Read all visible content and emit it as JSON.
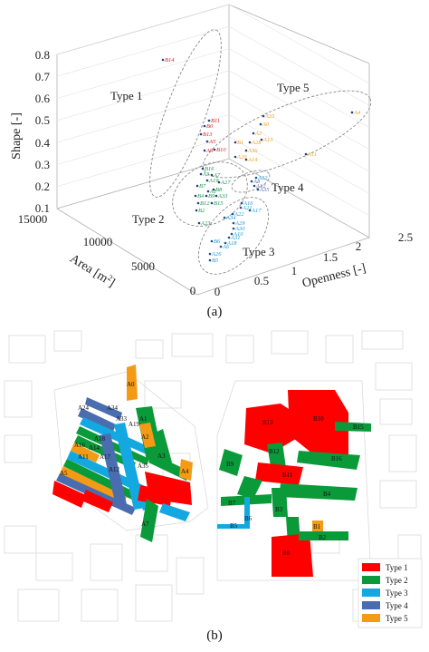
{
  "figure": {
    "caption_a": "(a)",
    "caption_b": "(b)"
  },
  "chart_data": {
    "type": "scatter3d",
    "axes": {
      "z_label": "Shape [-]",
      "z_ticks": [
        "0.1",
        "0.2",
        "0.3",
        "0.4",
        "0.5",
        "0.6",
        "0.7",
        "0.8"
      ],
      "area_label": "Area [m",
      "area_sup": "2",
      "area_close": "]",
      "area_ticks": [
        "15000",
        "10000",
        "5000",
        "0"
      ],
      "openness_label": "Openness [-]",
      "openness_ticks": [
        "0",
        "0.5",
        "1",
        "1.5",
        "2",
        "2.5"
      ]
    },
    "colors": {
      "type1": "#e31a1c",
      "type2": "#1a9850",
      "type3": "#1a9bd7",
      "type4": "#5a6fb0",
      "type5": "#f0a020"
    },
    "groups": [
      {
        "label": "Type 1",
        "points": [
          "B14",
          "B11",
          "B0",
          "B13",
          "A5",
          "A9",
          "B10"
        ]
      },
      {
        "label": "Type 2",
        "points": [
          "B16",
          "A3",
          "A7",
          "A19",
          "A27",
          "B7",
          "B8",
          "B4",
          "B9",
          "A33",
          "B12",
          "B15",
          "B2",
          "A1",
          "A23"
        ]
      },
      {
        "label": "Type 3",
        "points": [
          "A16",
          "A21",
          "A17",
          "A22",
          "A34",
          "A29",
          "A30",
          "A10",
          "B6",
          "A18",
          "A26",
          "B5",
          "A31",
          "A6",
          "A32"
        ]
      },
      {
        "label": "Type 4",
        "points": [
          "A8",
          "A12",
          "A35"
        ]
      },
      {
        "label": "Type 5",
        "points": [
          "A4",
          "A25",
          "A0",
          "A2",
          "B1",
          "A11",
          "A28",
          "A36",
          "A20",
          "A14",
          "A13"
        ]
      }
    ]
  },
  "map": {
    "legend": [
      {
        "label": "Type 1",
        "color": "#ff0000"
      },
      {
        "label": "Type 2",
        "color": "#0a9a3a"
      },
      {
        "label": "Type 3",
        "color": "#13a8e0"
      },
      {
        "label": "Type 4",
        "color": "#4a6db0"
      },
      {
        "label": "Type 5",
        "color": "#f59a14"
      }
    ],
    "labels_left": [
      "A0",
      "A34",
      "A33",
      "A19",
      "A24",
      "A1",
      "A2",
      "A3",
      "A12",
      "A35",
      "A4",
      "A7",
      "A14",
      "A16",
      "A11",
      "A17",
      "A18",
      "A5"
    ],
    "labels_right": [
      "B13",
      "B10",
      "B15",
      "B12",
      "B16",
      "B9",
      "B11",
      "B4",
      "B7",
      "B6",
      "B3",
      "B1",
      "B2",
      "B5",
      "B0"
    ]
  }
}
